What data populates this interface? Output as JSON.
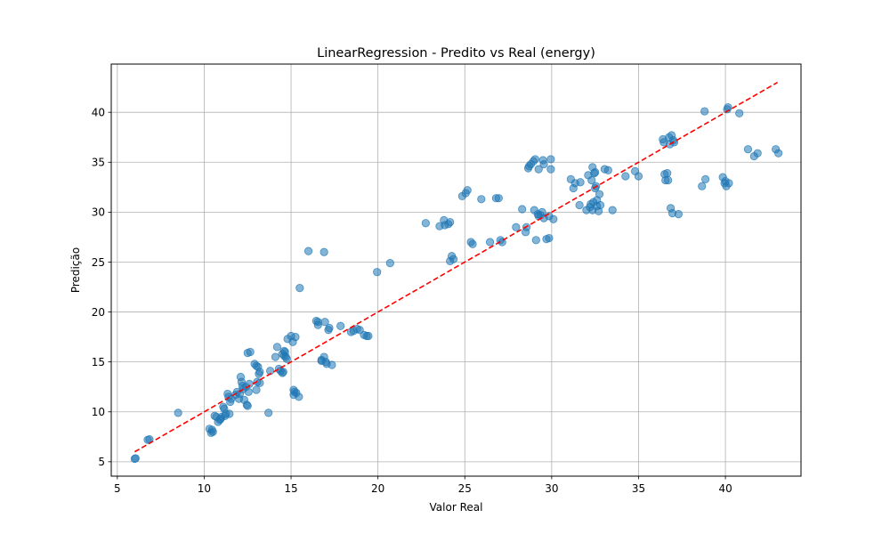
{
  "chart_data": {
    "type": "scatter",
    "title": "LinearRegression - Predito vs Real (energy)",
    "xlabel": "Valor Real",
    "ylabel": "Predição",
    "xlim": [
      4.65,
      44.35
    ],
    "ylim": [
      3.56,
      44.83
    ],
    "xticks": [
      5,
      10,
      15,
      20,
      25,
      30,
      35,
      40
    ],
    "yticks": [
      5,
      10,
      15,
      20,
      25,
      30,
      35,
      40
    ],
    "grid": true,
    "point_color": "#1f77b4",
    "point_opacity": 0.55,
    "reference_line": {
      "x": [
        6.0,
        43.0
      ],
      "y": [
        6.0,
        43.0
      ],
      "color": "#ff0000",
      "style": "dashed"
    },
    "points": [
      [
        6.0,
        5.3
      ],
      [
        6.05,
        5.35
      ],
      [
        6.75,
        7.2
      ],
      [
        6.85,
        7.25
      ],
      [
        8.5,
        9.9
      ],
      [
        10.3,
        8.3
      ],
      [
        10.4,
        7.9
      ],
      [
        10.5,
        8.0
      ],
      [
        10.45,
        8.2
      ],
      [
        10.6,
        9.6
      ],
      [
        10.7,
        9.5
      ],
      [
        10.8,
        9.0
      ],
      [
        10.9,
        9.2
      ],
      [
        10.95,
        9.3
      ],
      [
        11.0,
        9.5
      ],
      [
        11.1,
        10.5
      ],
      [
        11.15,
        10.3
      ],
      [
        11.2,
        9.6
      ],
      [
        11.25,
        9.8
      ],
      [
        11.35,
        11.8
      ],
      [
        11.4,
        11.5
      ],
      [
        11.45,
        9.8
      ],
      [
        11.5,
        11.0
      ],
      [
        11.55,
        11.3
      ],
      [
        11.8,
        11.7
      ],
      [
        11.9,
        12.0
      ],
      [
        12.0,
        11.3
      ],
      [
        12.05,
        11.8
      ],
      [
        12.1,
        13.5
      ],
      [
        12.15,
        13.0
      ],
      [
        12.2,
        12.6
      ],
      [
        12.25,
        12.3
      ],
      [
        12.3,
        11.2
      ],
      [
        12.4,
        12.5
      ],
      [
        12.45,
        10.7
      ],
      [
        12.5,
        10.6
      ],
      [
        12.55,
        12.0
      ],
      [
        12.6,
        12.8
      ],
      [
        12.5,
        15.9
      ],
      [
        12.65,
        16.0
      ],
      [
        12.9,
        14.8
      ],
      [
        13.0,
        14.6
      ],
      [
        13.1,
        14.5
      ],
      [
        13.0,
        12.2
      ],
      [
        13.05,
        13.0
      ],
      [
        13.15,
        13.8
      ],
      [
        13.2,
        14.0
      ],
      [
        13.2,
        12.9
      ],
      [
        13.7,
        9.9
      ],
      [
        13.8,
        14.1
      ],
      [
        14.1,
        15.5
      ],
      [
        14.2,
        16.5
      ],
      [
        14.3,
        14.3
      ],
      [
        14.4,
        14.1
      ],
      [
        14.5,
        13.9
      ],
      [
        14.5,
        15.8
      ],
      [
        14.55,
        14.0
      ],
      [
        14.6,
        15.6
      ],
      [
        14.6,
        16.1
      ],
      [
        14.65,
        16.0
      ],
      [
        14.7,
        15.5
      ],
      [
        14.75,
        15.3
      ],
      [
        14.8,
        17.3
      ],
      [
        15.0,
        17.6
      ],
      [
        15.1,
        17.0
      ],
      [
        15.15,
        12.2
      ],
      [
        15.15,
        11.7
      ],
      [
        15.2,
        12.0
      ],
      [
        15.25,
        17.5
      ],
      [
        15.3,
        11.9
      ],
      [
        15.45,
        11.5
      ],
      [
        15.5,
        22.4
      ],
      [
        16.0,
        26.1
      ],
      [
        16.45,
        19.1
      ],
      [
        16.55,
        18.7
      ],
      [
        16.55,
        19.0
      ],
      [
        16.75,
        15.1
      ],
      [
        16.75,
        15.2
      ],
      [
        16.9,
        15.5
      ],
      [
        16.95,
        19.0
      ],
      [
        16.9,
        26.0
      ],
      [
        17.0,
        15.0
      ],
      [
        17.05,
        14.8
      ],
      [
        17.15,
        18.2
      ],
      [
        17.2,
        18.4
      ],
      [
        17.35,
        14.7
      ],
      [
        17.85,
        18.6
      ],
      [
        18.45,
        18.0
      ],
      [
        18.6,
        18.1
      ],
      [
        18.8,
        18.3
      ],
      [
        18.95,
        18.2
      ],
      [
        19.2,
        17.7
      ],
      [
        19.35,
        17.6
      ],
      [
        19.45,
        17.6
      ],
      [
        19.95,
        24.0
      ],
      [
        20.7,
        24.9
      ],
      [
        22.75,
        28.9
      ],
      [
        23.55,
        28.6
      ],
      [
        23.8,
        29.2
      ],
      [
        23.85,
        28.7
      ],
      [
        24.05,
        28.8
      ],
      [
        24.15,
        29.0
      ],
      [
        24.15,
        25.1
      ],
      [
        24.25,
        25.6
      ],
      [
        24.35,
        25.3
      ],
      [
        24.85,
        31.6
      ],
      [
        25.05,
        31.9
      ],
      [
        25.15,
        32.2
      ],
      [
        25.35,
        27.0
      ],
      [
        25.45,
        26.8
      ],
      [
        25.95,
        31.3
      ],
      [
        26.45,
        27.0
      ],
      [
        26.8,
        31.4
      ],
      [
        26.95,
        31.4
      ],
      [
        27.05,
        27.2
      ],
      [
        27.15,
        27.0
      ],
      [
        27.95,
        28.5
      ],
      [
        28.3,
        30.3
      ],
      [
        28.5,
        28.0
      ],
      [
        28.55,
        28.5
      ],
      [
        28.65,
        34.4
      ],
      [
        28.7,
        34.6
      ],
      [
        28.8,
        34.8
      ],
      [
        28.95,
        35.1
      ],
      [
        29.05,
        35.3
      ],
      [
        29.0,
        30.2
      ],
      [
        29.1,
        27.2
      ],
      [
        29.2,
        29.8
      ],
      [
        29.25,
        29.6
      ],
      [
        29.25,
        34.3
      ],
      [
        29.35,
        29.7
      ],
      [
        29.45,
        30.0
      ],
      [
        29.5,
        35.2
      ],
      [
        29.55,
        34.8
      ],
      [
        29.55,
        29.4
      ],
      [
        29.7,
        27.3
      ],
      [
        29.85,
        29.6
      ],
      [
        29.85,
        27.4
      ],
      [
        29.95,
        35.3
      ],
      [
        29.95,
        34.3
      ],
      [
        30.1,
        29.3
      ],
      [
        31.1,
        33.3
      ],
      [
        31.25,
        32.4
      ],
      [
        31.35,
        32.9
      ],
      [
        31.6,
        30.7
      ],
      [
        31.65,
        33.0
      ],
      [
        32.0,
        30.2
      ],
      [
        32.1,
        33.7
      ],
      [
        32.2,
        30.5
      ],
      [
        32.25,
        30.8
      ],
      [
        32.3,
        33.2
      ],
      [
        32.35,
        34.5
      ],
      [
        32.35,
        30.2
      ],
      [
        32.4,
        31.0
      ],
      [
        32.45,
        33.9
      ],
      [
        32.5,
        32.4
      ],
      [
        32.5,
        34.0
      ],
      [
        32.55,
        32.6
      ],
      [
        32.6,
        31.2
      ],
      [
        32.6,
        30.6
      ],
      [
        32.7,
        30.1
      ],
      [
        32.75,
        31.8
      ],
      [
        32.8,
        30.7
      ],
      [
        33.05,
        34.3
      ],
      [
        33.25,
        34.2
      ],
      [
        33.5,
        30.2
      ],
      [
        34.25,
        33.6
      ],
      [
        34.8,
        34.1
      ],
      [
        35.0,
        33.6
      ],
      [
        36.4,
        37.3
      ],
      [
        36.45,
        37.0
      ],
      [
        36.5,
        33.8
      ],
      [
        36.55,
        33.2
      ],
      [
        36.65,
        33.9
      ],
      [
        36.7,
        33.2
      ],
      [
        36.75,
        37.5
      ],
      [
        36.8,
        36.8
      ],
      [
        36.85,
        30.4
      ],
      [
        36.9,
        37.7
      ],
      [
        36.95,
        29.9
      ],
      [
        37.0,
        37.2
      ],
      [
        37.05,
        37.0
      ],
      [
        37.3,
        29.8
      ],
      [
        38.65,
        32.6
      ],
      [
        38.8,
        40.1
      ],
      [
        38.85,
        33.3
      ],
      [
        39.85,
        33.5
      ],
      [
        39.95,
        32.9
      ],
      [
        40.0,
        33.1
      ],
      [
        40.05,
        32.6
      ],
      [
        40.1,
        40.3
      ],
      [
        40.15,
        40.5
      ],
      [
        40.2,
        32.9
      ],
      [
        40.8,
        39.9
      ],
      [
        41.3,
        36.3
      ],
      [
        41.65,
        35.6
      ],
      [
        41.85,
        35.9
      ],
      [
        42.9,
        36.3
      ],
      [
        43.05,
        35.9
      ]
    ]
  }
}
